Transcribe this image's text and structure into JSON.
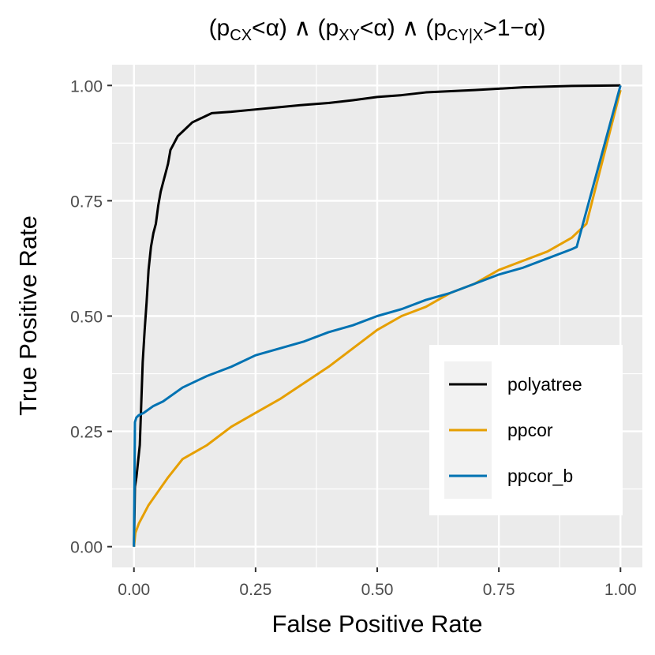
{
  "chart_data": {
    "type": "line",
    "title": "(pCX<α) ∧ (pXY<α) ∧ (pCY|X>1−α)",
    "title_parts": [
      {
        "text": "(p",
        "sub": false
      },
      {
        "text": "CX",
        "sub": true
      },
      {
        "text": "<α) ∧ (p",
        "sub": false
      },
      {
        "text": "XY",
        "sub": true
      },
      {
        "text": "<α) ∧ (p",
        "sub": false
      },
      {
        "text": "CY|X",
        "sub": true
      },
      {
        "text": ">1−α)",
        "sub": false
      }
    ],
    "xlabel": "False Positive Rate",
    "ylabel": "True Positive Rate",
    "xlim": [
      -0.045,
      1.045
    ],
    "ylim": [
      -0.045,
      1.045
    ],
    "x_ticks": [
      0.0,
      0.25,
      0.5,
      0.75,
      1.0
    ],
    "x_tick_labels": [
      "0.00",
      "0.25",
      "0.50",
      "0.75",
      "1.00"
    ],
    "y_ticks": [
      0.0,
      0.25,
      0.5,
      0.75,
      1.0
    ],
    "y_tick_labels": [
      "0.00",
      "0.25",
      "0.50",
      "0.75",
      "1.00"
    ],
    "x_minor": [
      0.125,
      0.375,
      0.625,
      0.875
    ],
    "y_minor": [
      0.125,
      0.375,
      0.625,
      0.875
    ],
    "grid": true,
    "legend_position": "bottom-right",
    "series": [
      {
        "name": "polyatree",
        "color": "#000000",
        "x": [
          0,
          0.002,
          0.005,
          0.008,
          0.012,
          0.015,
          0.018,
          0.022,
          0.026,
          0.03,
          0.035,
          0.04,
          0.045,
          0.05,
          0.055,
          0.06,
          0.065,
          0.07,
          0.075,
          0.08,
          0.09,
          0.1,
          0.11,
          0.12,
          0.14,
          0.16,
          0.2,
          0.25,
          0.3,
          0.35,
          0.4,
          0.45,
          0.5,
          0.55,
          0.6,
          0.7,
          0.75,
          0.8,
          0.9,
          1.0
        ],
        "y": [
          0,
          0.13,
          0.15,
          0.18,
          0.22,
          0.31,
          0.4,
          0.47,
          0.53,
          0.6,
          0.65,
          0.68,
          0.7,
          0.74,
          0.77,
          0.79,
          0.81,
          0.83,
          0.86,
          0.87,
          0.89,
          0.9,
          0.91,
          0.92,
          0.93,
          0.94,
          0.943,
          0.948,
          0.953,
          0.958,
          0.962,
          0.968,
          0.975,
          0.979,
          0.985,
          0.99,
          0.993,
          0.996,
          0.999,
          1.0
        ]
      },
      {
        "name": "ppcor",
        "color": "#E69F00",
        "x": [
          0,
          0.003,
          0.01,
          0.02,
          0.03,
          0.05,
          0.07,
          0.1,
          0.15,
          0.2,
          0.25,
          0.3,
          0.35,
          0.4,
          0.45,
          0.5,
          0.55,
          0.6,
          0.65,
          0.7,
          0.75,
          0.8,
          0.85,
          0.9,
          0.92,
          0.93,
          1.0
        ],
        "y": [
          0,
          0.03,
          0.05,
          0.07,
          0.09,
          0.12,
          0.15,
          0.19,
          0.22,
          0.26,
          0.29,
          0.32,
          0.355,
          0.39,
          0.43,
          0.47,
          0.5,
          0.52,
          0.55,
          0.57,
          0.6,
          0.62,
          0.64,
          0.67,
          0.69,
          0.7,
          0.99
        ]
      },
      {
        "name": "ppcor_b",
        "color": "#0072B2",
        "x": [
          0,
          0.002,
          0.005,
          0.01,
          0.02,
          0.04,
          0.06,
          0.1,
          0.15,
          0.2,
          0.25,
          0.3,
          0.35,
          0.4,
          0.45,
          0.5,
          0.55,
          0.6,
          0.65,
          0.7,
          0.75,
          0.8,
          0.85,
          0.9,
          0.91,
          1.0
        ],
        "y": [
          0,
          0.27,
          0.28,
          0.285,
          0.29,
          0.305,
          0.315,
          0.345,
          0.37,
          0.39,
          0.415,
          0.43,
          0.445,
          0.465,
          0.48,
          0.5,
          0.515,
          0.535,
          0.55,
          0.57,
          0.59,
          0.605,
          0.625,
          0.645,
          0.65,
          1.0
        ]
      }
    ]
  }
}
